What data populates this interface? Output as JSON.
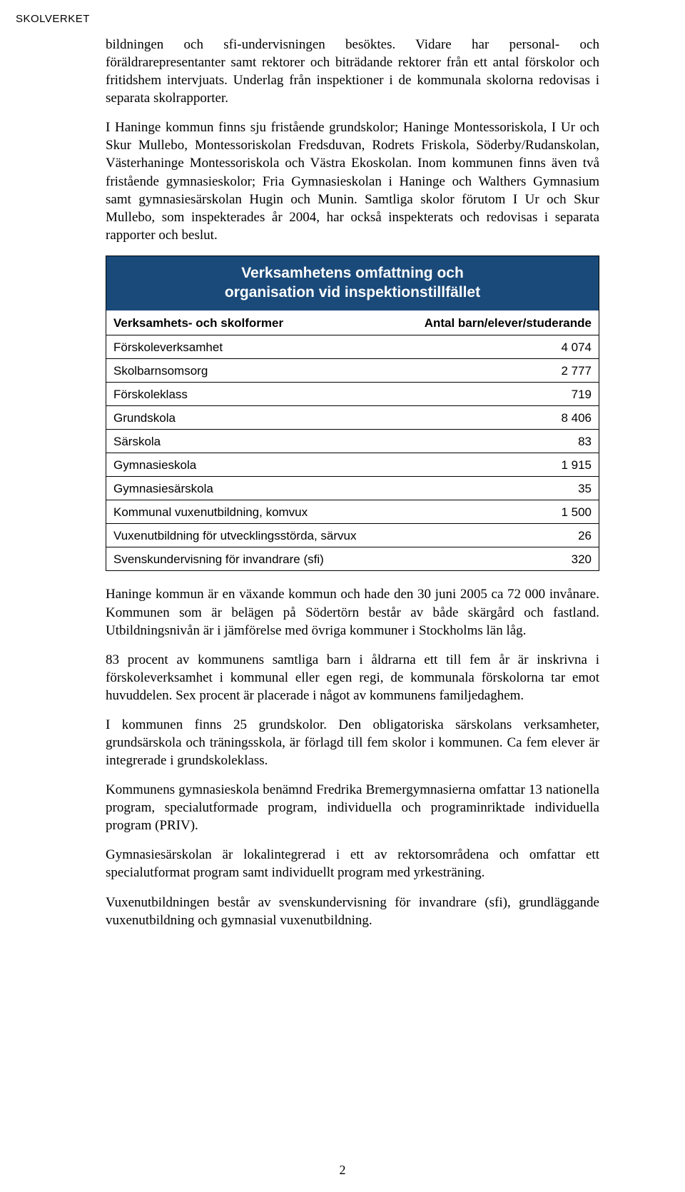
{
  "header": "SKOLVERKET",
  "para1": "bildningen och sfi-undervisningen besöktes. Vidare har personal- och föräldrarepresentanter samt rektorer och biträdande rektorer från ett antal förskolor och fritidshem intervjuats. Underlag från inspektioner i de kommunala skolorna redovisas i separata skolrapporter.",
  "para2": "I Haninge kommun finns sju fristående grundskolor; Haninge Montessoriskola, I Ur och Skur Mullebo, Montessoriskolan Fredsduvan, Rodrets Friskola, Söderby/Rudanskolan, Västerhaninge Montessoriskola och Västra Ekoskolan. Inom kommunen finns även två fristående gymnasieskolor; Fria Gymnasieskolan i Haninge och Walthers Gymnasium samt gymnasiesärskolan Hugin och Munin. Samtliga skolor förutom I Ur och Skur Mullebo, som inspekterades år 2004, har också inspekterats och redovisas i separata rapporter och beslut.",
  "table": {
    "title_line1": "Verksamhetens omfattning och",
    "title_line2": "organisation vid inspektionstillfället",
    "col1": "Verksamhets- och skolformer",
    "col2": "Antal barn/elever/studerande",
    "rows": [
      {
        "label": "Förskoleverksamhet",
        "value": "4 074"
      },
      {
        "label": "Skolbarnsomsorg",
        "value": "2 777"
      },
      {
        "label": "Förskoleklass",
        "value": "719"
      },
      {
        "label": "Grundskola",
        "value": "8 406"
      },
      {
        "label": "Särskola",
        "value": "83"
      },
      {
        "label": "Gymnasieskola",
        "value": "1 915"
      },
      {
        "label": "Gymnasiesärskola",
        "value": "35"
      },
      {
        "label": "Kommunal vuxenutbildning, komvux",
        "value": "1 500"
      },
      {
        "label": "Vuxenutbildning för utvecklingsstörda, särvux",
        "value": "26"
      },
      {
        "label": "Svenskundervisning för invandrare (sfi)",
        "value": "320"
      }
    ],
    "header_bg": "#1a4a7a",
    "header_fg": "#ffffff",
    "border_color": "#000000"
  },
  "para3": "Haninge kommun är en växande kommun och hade den 30 juni 2005 ca 72 000 invånare. Kommunen som är belägen på Södertörn består av både skärgård och fastland. Utbildningsnivån är i jämförelse med övriga kommuner i Stockholms län låg.",
  "para4": "83 procent av kommunens samtliga barn i åldrarna ett till fem år är inskrivna i förskoleverksamhet i kommunal eller egen regi, de kommunala förskolorna tar emot huvuddelen. Sex procent är placerade i något av kommunens familjedaghem.",
  "para5": "I kommunen finns 25 grundskolor. Den obligatoriska särskolans verksamheter, grundsärskola och träningsskola, är förlagd till fem skolor i kommunen. Ca fem elever är integrerade i grundskoleklass.",
  "para6": "Kommunens gymnasieskola benämnd Fredrika Bremergymnasierna omfattar 13 nationella program, specialutformade program, individuella och programinriktade individuella program (PRIV).",
  "para7": "Gymnasiesärskolan är lokalintegrerad i ett av rektorsområdena och omfattar ett specialutformat program samt individuellt program med yrkesträning.",
  "para8": "Vuxenutbildningen består av svenskundervisning för invandrare (sfi), grundläggande vuxenutbildning och gymnasial vuxenutbildning.",
  "pagenum": "2"
}
